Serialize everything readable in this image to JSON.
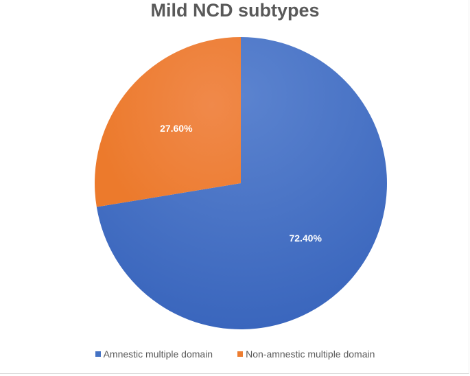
{
  "chart_data": {
    "type": "pie",
    "title": "Mild NCD subtypes",
    "categories": [
      "Amnestic multiple domain",
      "Non-amnestic multiple domain"
    ],
    "values": [
      72.4,
      27.6
    ],
    "data_labels": [
      "72.40%",
      "27.60%"
    ],
    "colors": [
      "#4472c4",
      "#ed7d31"
    ],
    "legend_position": "bottom",
    "start_angle": "12 o'clock, clockwise"
  }
}
